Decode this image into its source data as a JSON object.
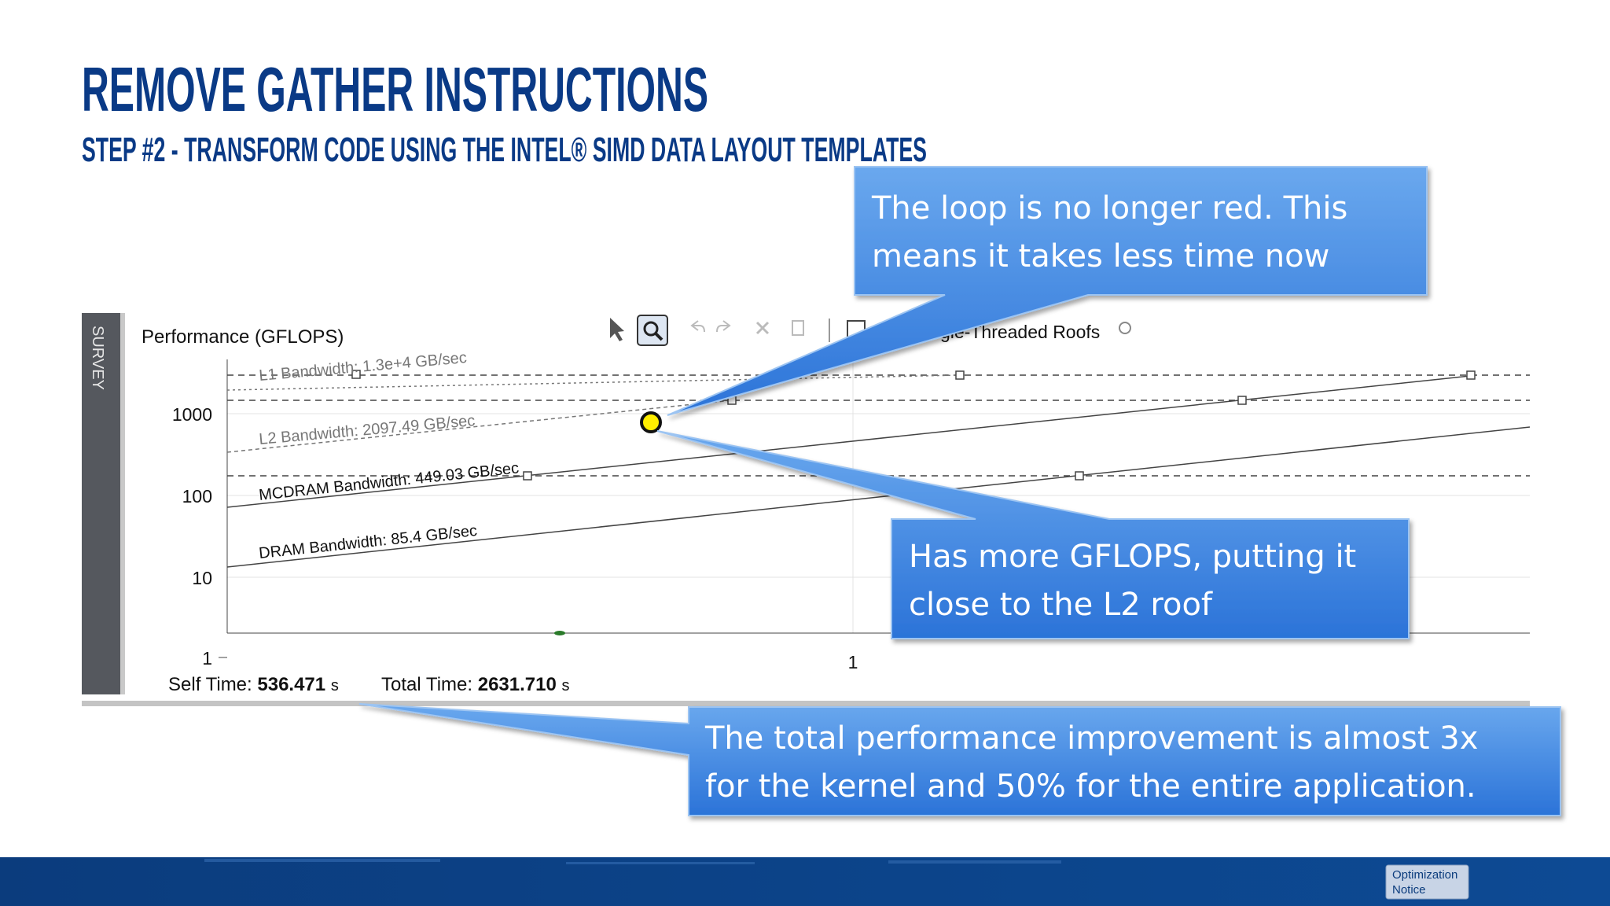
{
  "header": {
    "title": "REMOVE GATHER INSTRUCTIONS",
    "subtitle": "STEP #2 - TRANSFORM CODE USING THE INTEL® SIMD DATA LAYOUT TEMPLATES"
  },
  "panel": {
    "tab": "SURVEY",
    "y_axis_label": "Performance (GFLOPS)",
    "roofs_toggle": "gle-Threaded Roofs",
    "roofs": [
      "L1 Bandwidth: 1.3e+4 GB/sec",
      "L2 Bandwidth: 2097.49 GB/sec",
      "MCDRAM Bandwidth: 449.03 GB/sec",
      "DRAM Bandwidth: 85.4 GB/sec"
    ],
    "yticks": [
      "1000",
      "100",
      "10",
      "1"
    ],
    "xticks": [
      "1"
    ],
    "self_time_label": "Self Time:",
    "self_time": "536.471",
    "total_time_label": "Total Time:",
    "total_time": "2631.710",
    "time_unit": "s"
  },
  "callouts": [
    {
      "lines": [
        "The loop is no longer red. This",
        "means it takes less time now"
      ]
    },
    {
      "lines": [
        "Has more GFLOPS, putting it",
        "close to the L2 roof"
      ]
    },
    {
      "lines": [
        "The total performance improvement is almost 3x",
        "for the kernel and 50% for the entire application."
      ]
    }
  ],
  "footer": {
    "notice": [
      "Optimization",
      "Notice"
    ]
  }
}
